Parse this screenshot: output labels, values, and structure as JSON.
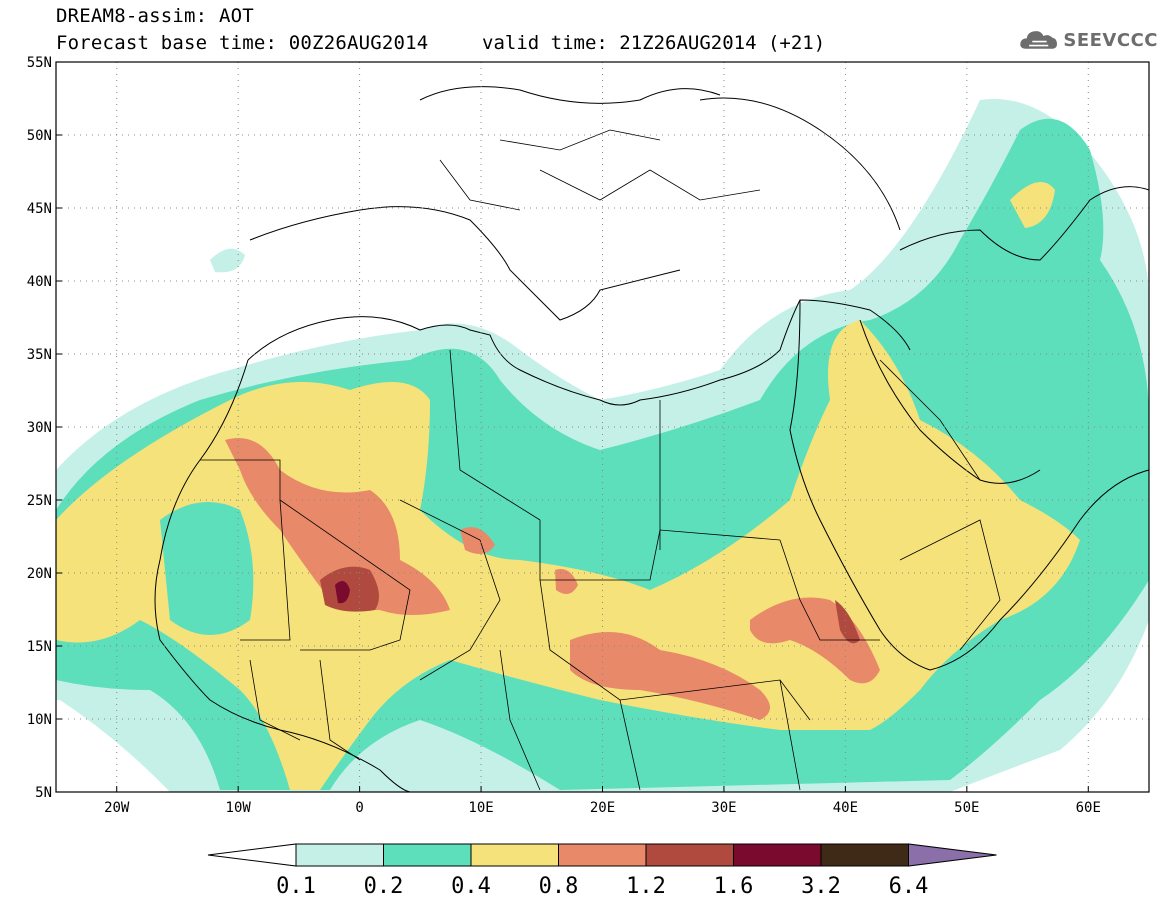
{
  "header": {
    "line1": "DREAM8-assim: AOT",
    "line2": "Forecast base time: 00Z26AUG2014",
    "valid_time": "valid time: 21Z26AUG2014 (+21)",
    "logo_text": "SEEVCCC",
    "logo_icon": "cloud-icon"
  },
  "map": {
    "lon_range": [
      -25,
      65
    ],
    "lat_range": [
      5,
      55
    ],
    "lat_ticks": [
      {
        "value": 55,
        "label": "55N"
      },
      {
        "value": 50,
        "label": "50N"
      },
      {
        "value": 45,
        "label": "45N"
      },
      {
        "value": 40,
        "label": "40N"
      },
      {
        "value": 35,
        "label": "35N"
      },
      {
        "value": 30,
        "label": "30N"
      },
      {
        "value": 25,
        "label": "25N"
      },
      {
        "value": 20,
        "label": "20N"
      },
      {
        "value": 15,
        "label": "15N"
      },
      {
        "value": 10,
        "label": "10N"
      },
      {
        "value": 5,
        "label": "5N"
      }
    ],
    "lon_ticks": [
      {
        "value": -20,
        "label": "20W"
      },
      {
        "value": -10,
        "label": "10W"
      },
      {
        "value": 0,
        "label": "0"
      },
      {
        "value": 10,
        "label": "10E"
      },
      {
        "value": 20,
        "label": "20E"
      },
      {
        "value": 30,
        "label": "30E"
      },
      {
        "value": 40,
        "label": "40E"
      },
      {
        "value": 50,
        "label": "50E"
      },
      {
        "value": 60,
        "label": "60E"
      }
    ],
    "grid": "dotted"
  },
  "colorbar": {
    "levels": [
      "0.1",
      "0.2",
      "0.4",
      "0.8",
      "1.2",
      "1.6",
      "3.2",
      "6.4"
    ],
    "colors": [
      "#c4f0e8",
      "#5ddfbb",
      "#f6e27a",
      "#e8896a",
      "#b04a3e",
      "#7a0a2e",
      "#3f2a18"
    ],
    "under_color": "#ffffff",
    "over_color": "#8a6fa8"
  }
}
